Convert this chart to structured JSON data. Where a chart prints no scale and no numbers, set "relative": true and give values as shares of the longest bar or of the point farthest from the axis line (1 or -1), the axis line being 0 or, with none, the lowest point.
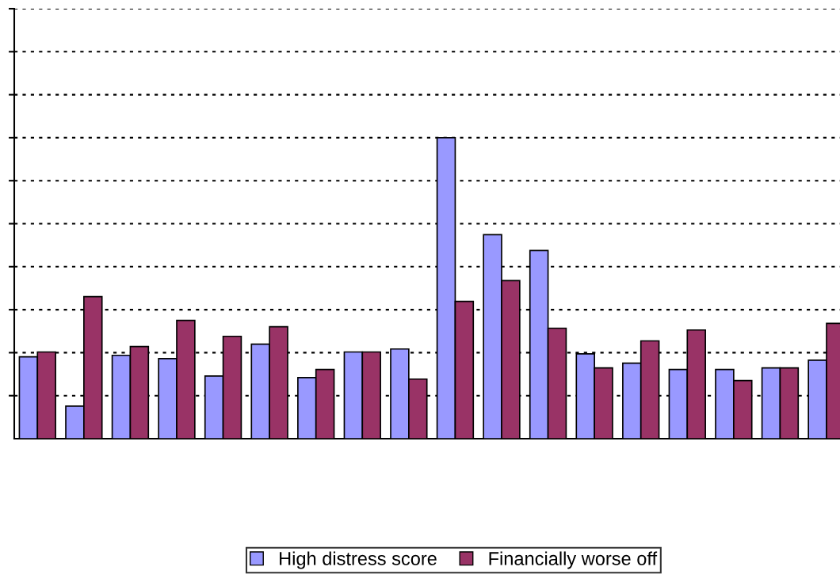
{
  "chart_data": {
    "type": "bar",
    "relative": true,
    "grid": "y",
    "legend": "bottom",
    "categories": [
      null,
      null,
      null,
      null,
      null,
      null,
      null,
      null,
      null,
      null,
      null,
      null,
      null,
      null,
      null,
      null,
      null,
      null
    ],
    "series": [
      {
        "name": "High distress score",
        "color": "#9999ff",
        "values": [
          0.272,
          0.108,
          0.277,
          0.266,
          0.208,
          0.314,
          0.203,
          0.288,
          0.298,
          1,
          0.678,
          0.625,
          0.282,
          0.251,
          0.23,
          0.23,
          0.235,
          0.261
        ]
      },
      {
        "name": "Financially worse off",
        "color": "#993366",
        "values": [
          0.288,
          0.472,
          0.306,
          0.393,
          0.34,
          0.372,
          0.23,
          0.288,
          0.198,
          0.456,
          0.525,
          0.367,
          0.235,
          0.325,
          0.361,
          0.193,
          0.235,
          0.383
        ]
      }
    ]
  }
}
